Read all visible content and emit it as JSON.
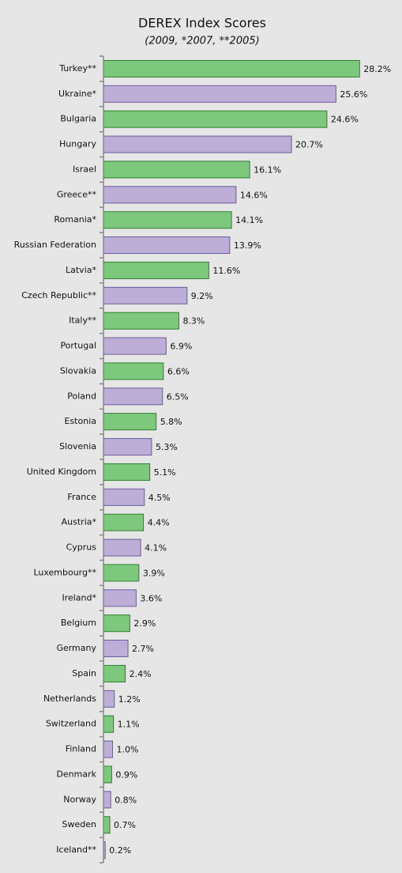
{
  "chart_data": {
    "type": "hbar",
    "title": "DEREX Index Scores",
    "subtitle": "(2009, *2007, **2005)",
    "categories": [
      "Turkey**",
      "Ukraine*",
      "Bulgaria",
      "Hungary",
      "Israel",
      "Greece**",
      "Romania*",
      "Russian Federation",
      "Latvia*",
      "Czech Republic**",
      "Italy**",
      "Portugal",
      "Slovakia",
      "Poland",
      "Estonia",
      "Slovenia",
      "United Kingdom",
      "France",
      "Austria*",
      "Cyprus",
      "Luxembourg**",
      "Ireland*",
      "Belgium",
      "Germany",
      "Spain",
      "Netherlands",
      "Switzerland",
      "Finland",
      "Denmark",
      "Norway",
      "Sweden",
      "Iceland**"
    ],
    "values": [
      28.2,
      25.6,
      24.6,
      20.7,
      16.1,
      14.6,
      14.1,
      13.9,
      11.6,
      9.2,
      8.3,
      6.9,
      6.6,
      6.5,
      5.8,
      5.3,
      5.1,
      4.5,
      4.4,
      4.1,
      3.9,
      3.6,
      2.9,
      2.7,
      2.4,
      1.2,
      1.1,
      1.0,
      0.9,
      0.8,
      0.7,
      0.2
    ],
    "value_labels": [
      "28.2%",
      "25.6%",
      "24.6%",
      "20.7%",
      "16.1%",
      "14.6%",
      "14.1%",
      "13.9%",
      "11.6%",
      "9.2%",
      "8.3%",
      "6.9%",
      "6.6%",
      "6.5%",
      "5.8%",
      "5.3%",
      "5.1%",
      "4.5%",
      "4.4%",
      "4.1%",
      "3.9%",
      "3.6%",
      "2.9%",
      "2.7%",
      "2.4%",
      "1.2%",
      "1.1%",
      "1.0%",
      "0.9%",
      "0.8%",
      "0.7%",
      "0.2%"
    ],
    "colors": [
      "#7dc87d",
      "#bcaed6",
      "#7dc87d",
      "#bcaed6",
      "#7dc87d",
      "#bcaed6",
      "#7dc87d",
      "#bcaed6",
      "#7dc87d",
      "#bcaed6",
      "#7dc87d",
      "#bcaed6",
      "#7dc87d",
      "#bcaed6",
      "#7dc87d",
      "#bcaed6",
      "#7dc87d",
      "#bcaed6",
      "#7dc87d",
      "#bcaed6",
      "#7dc87d",
      "#bcaed6",
      "#7dc87d",
      "#bcaed6",
      "#7dc87d",
      "#bcaed6",
      "#7dc87d",
      "#bcaed6",
      "#7dc87d",
      "#bcaed6",
      "#7dc87d",
      "#bcaed6"
    ],
    "xlim": [
      0,
      30
    ]
  }
}
